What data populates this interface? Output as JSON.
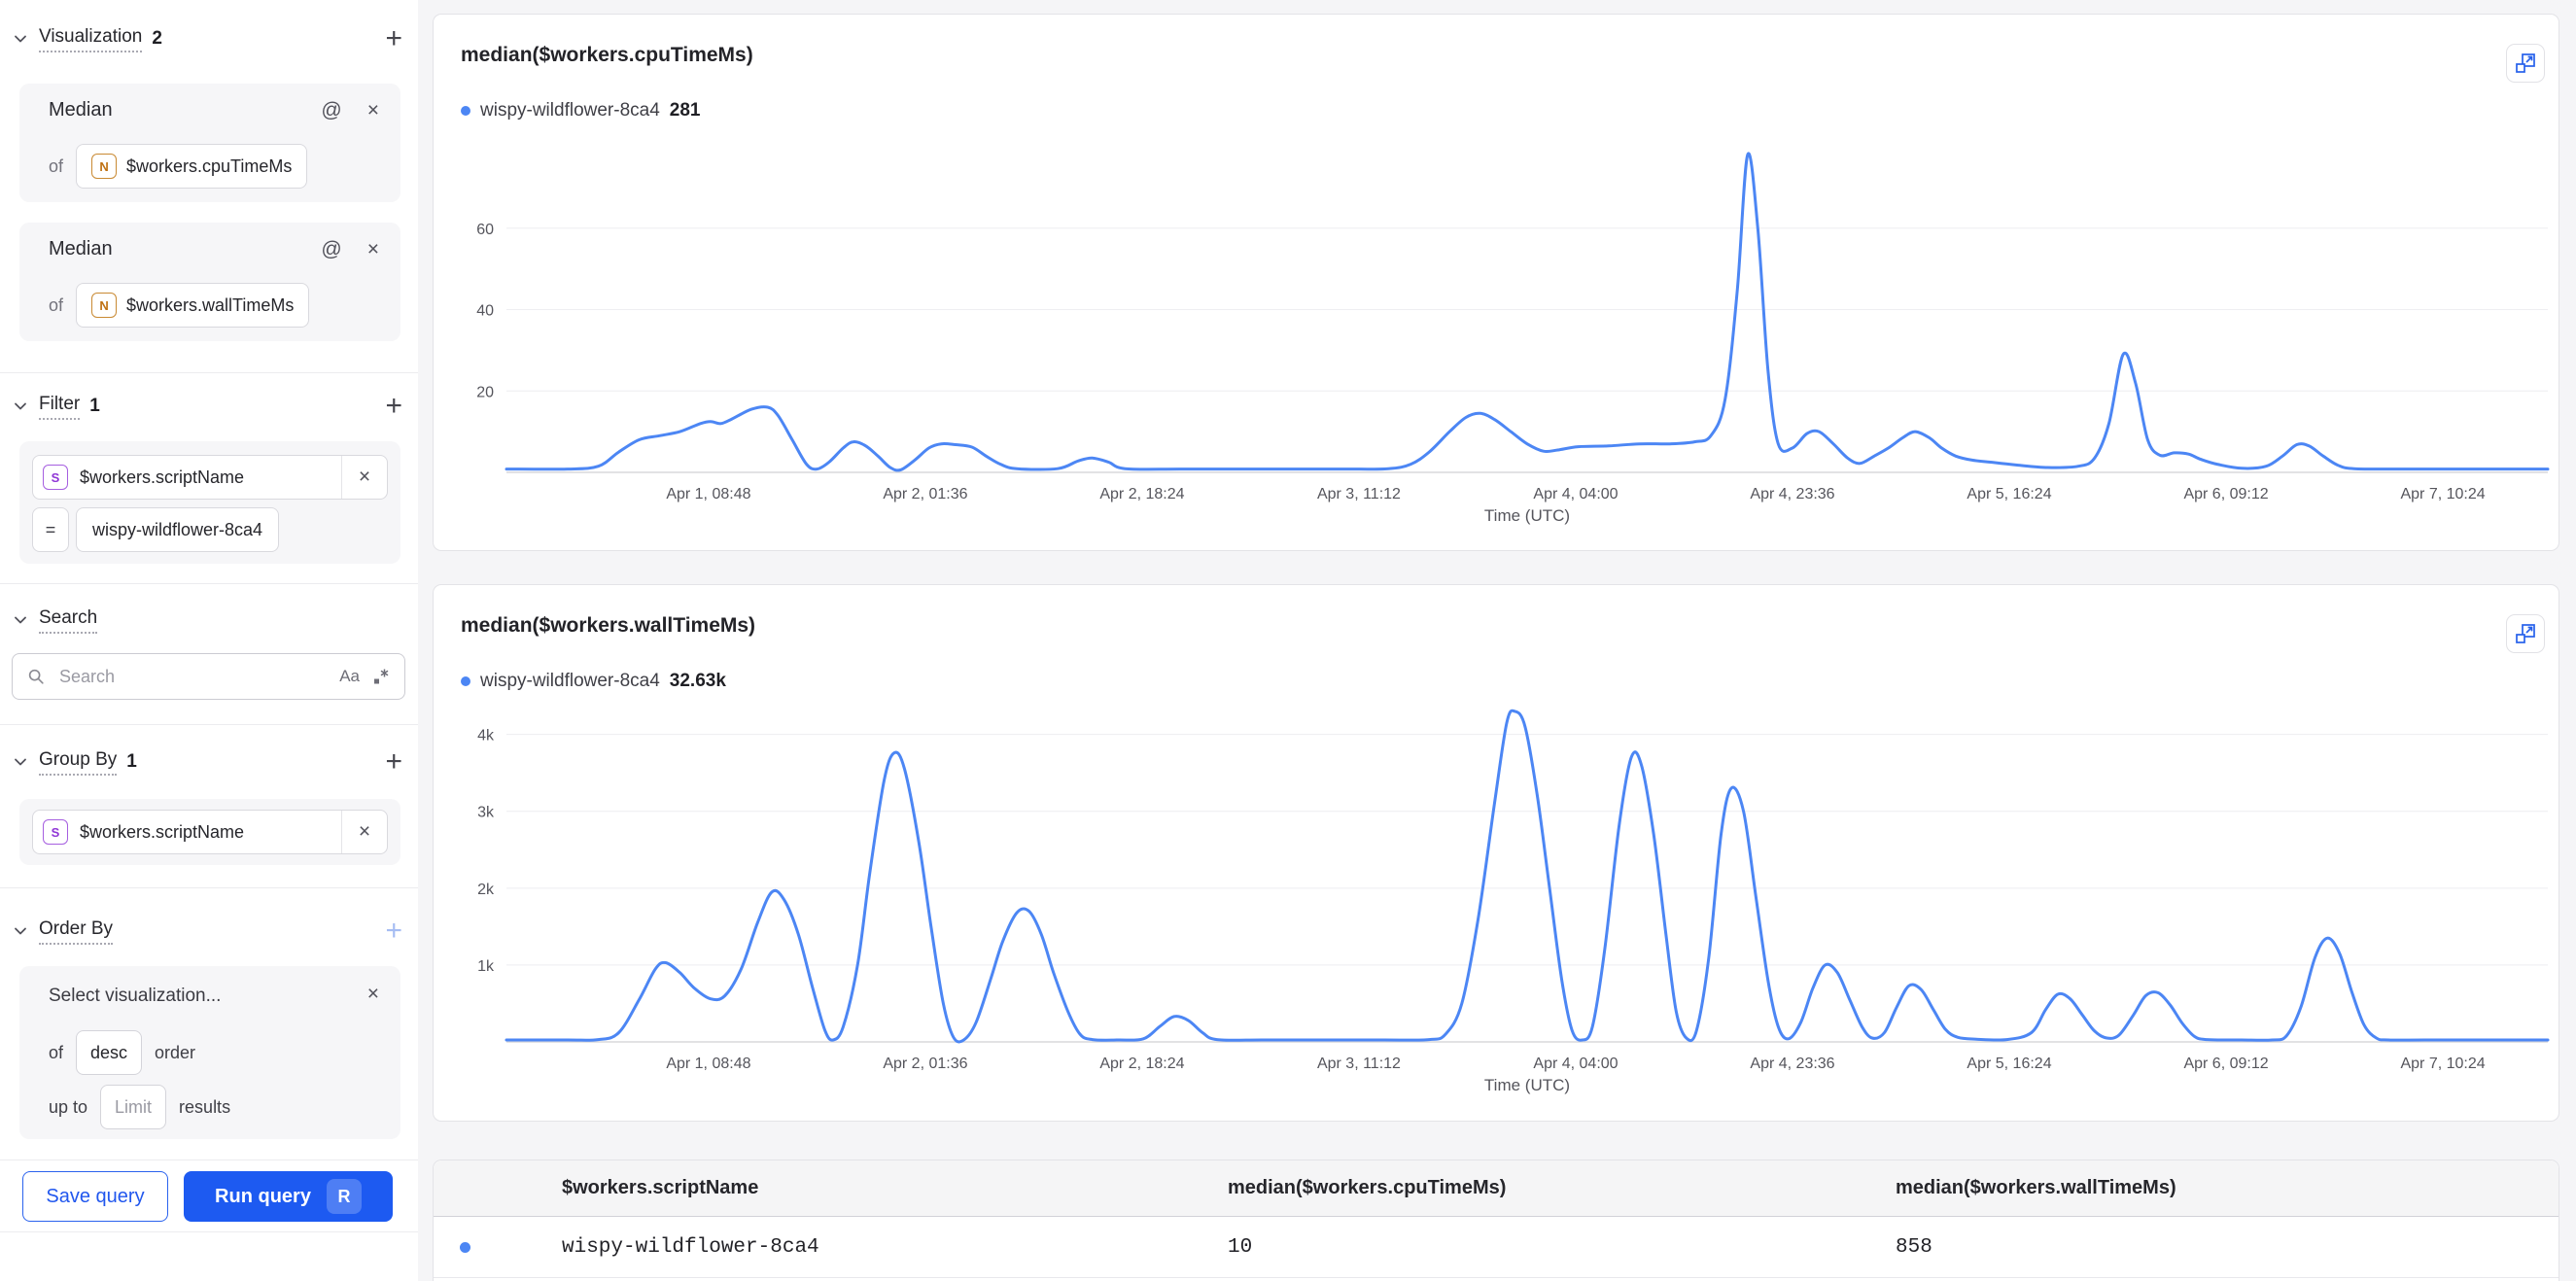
{
  "icons": {
    "at": "@",
    "close": "×",
    "plus": "+"
  },
  "sidebar": {
    "visualization": {
      "title": "Visualization",
      "count": "2",
      "cards": [
        {
          "fn": "Median",
          "of_label": "of",
          "type_letter": "N",
          "field": "$workers.cpuTimeMs"
        },
        {
          "fn": "Median",
          "of_label": "of",
          "type_letter": "N",
          "field": "$workers.wallTimeMs"
        }
      ]
    },
    "filter": {
      "title": "Filter",
      "count": "1",
      "type_letter": "S",
      "field": "$workers.scriptName",
      "operator": "=",
      "value": "wispy-wildflower-8ca4"
    },
    "search": {
      "title": "Search",
      "placeholder": "Search",
      "match_case_label": "Aa"
    },
    "group_by": {
      "title": "Group By",
      "count": "1",
      "type_letter": "S",
      "field": "$workers.scriptName"
    },
    "order_by": {
      "title": "Order By",
      "placeholder": "Select visualization...",
      "of_label": "of",
      "direction": "desc",
      "order_label": "order",
      "up_to_label": "up to",
      "limit_placeholder": "Limit",
      "results_label": "results"
    },
    "actions": {
      "save_label": "Save query",
      "run_label": "Run query",
      "run_shortcut": "R"
    }
  },
  "chart_data": [
    {
      "type": "line",
      "title": "median($workers.cpuTimeMs)",
      "xlabel": "Time (UTC)",
      "ylim": [
        0,
        80
      ],
      "grid": true,
      "legend_position": "top-left",
      "yticks": [
        {
          "value": 20,
          "label": "20"
        },
        {
          "value": 40,
          "label": "40"
        },
        {
          "value": 60,
          "label": "60"
        }
      ],
      "x_tick_labels": [
        "Apr 1, 08:48",
        "Apr 2, 01:36",
        "Apr 2, 18:24",
        "Apr 3, 11:12",
        "Apr 4, 04:00",
        "Apr 4, 23:36",
        "Apr 5, 16:24",
        "Apr 6, 09:12",
        "Apr 7, 10:24"
      ],
      "x_tick_start": 0.099,
      "x_tick_step": 0.1062,
      "plot": {
        "top": 16,
        "bottom": 351
      },
      "series": [
        {
          "name": "wispy-wildflower-8ca4",
          "legend_value": "281",
          "color": "#4C86F4",
          "points": [
            [
              0,
              0.8
            ],
            [
              0.03,
              0.8
            ],
            [
              0.045,
              1.5
            ],
            [
              0.055,
              5
            ],
            [
              0.065,
              8
            ],
            [
              0.075,
              9
            ],
            [
              0.085,
              10
            ],
            [
              0.095,
              12
            ],
            [
              0.1,
              12.5
            ],
            [
              0.105,
              12
            ],
            [
              0.11,
              13
            ],
            [
              0.12,
              15.5
            ],
            [
              0.128,
              16
            ],
            [
              0.133,
              14
            ],
            [
              0.14,
              8
            ],
            [
              0.147,
              2
            ],
            [
              0.152,
              0.8
            ],
            [
              0.158,
              2.5
            ],
            [
              0.165,
              6
            ],
            [
              0.17,
              7.5
            ],
            [
              0.176,
              6.5
            ],
            [
              0.182,
              4
            ],
            [
              0.188,
              1.2
            ],
            [
              0.193,
              0.6
            ],
            [
              0.2,
              3
            ],
            [
              0.207,
              6
            ],
            [
              0.213,
              7
            ],
            [
              0.22,
              6.8
            ],
            [
              0.228,
              6.2
            ],
            [
              0.235,
              4
            ],
            [
              0.242,
              2
            ],
            [
              0.25,
              0.9
            ],
            [
              0.27,
              0.9
            ],
            [
              0.28,
              2.8
            ],
            [
              0.287,
              3.5
            ],
            [
              0.295,
              2.5
            ],
            [
              0.303,
              0.9
            ],
            [
              0.33,
              0.8
            ],
            [
              0.37,
              0.8
            ],
            [
              0.41,
              0.8
            ],
            [
              0.432,
              0.9
            ],
            [
              0.443,
              2
            ],
            [
              0.452,
              5
            ],
            [
              0.462,
              10
            ],
            [
              0.47,
              13.5
            ],
            [
              0.477,
              14.5
            ],
            [
              0.484,
              13
            ],
            [
              0.492,
              10
            ],
            [
              0.5,
              7
            ],
            [
              0.508,
              5.2
            ],
            [
              0.515,
              5.5
            ],
            [
              0.525,
              6.3
            ],
            [
              0.54,
              6.5
            ],
            [
              0.555,
              7
            ],
            [
              0.57,
              7
            ],
            [
              0.582,
              7.5
            ],
            [
              0.59,
              9
            ],
            [
              0.597,
              18
            ],
            [
              0.603,
              45
            ],
            [
              0.608,
              78
            ],
            [
              0.613,
              60
            ],
            [
              0.618,
              25
            ],
            [
              0.623,
              7
            ],
            [
              0.63,
              6
            ],
            [
              0.637,
              9.5
            ],
            [
              0.643,
              10
            ],
            [
              0.65,
              7
            ],
            [
              0.657,
              3.5
            ],
            [
              0.663,
              2.2
            ],
            [
              0.67,
              4
            ],
            [
              0.677,
              6
            ],
            [
              0.684,
              8.5
            ],
            [
              0.69,
              10
            ],
            [
              0.697,
              8.5
            ],
            [
              0.703,
              6
            ],
            [
              0.71,
              4
            ],
            [
              0.718,
              3
            ],
            [
              0.727,
              2.5
            ],
            [
              0.74,
              1.8
            ],
            [
              0.755,
              1.2
            ],
            [
              0.77,
              1.5
            ],
            [
              0.778,
              3.5
            ],
            [
              0.785,
              12
            ],
            [
              0.792,
              29
            ],
            [
              0.798,
              22
            ],
            [
              0.804,
              8
            ],
            [
              0.81,
              4.2
            ],
            [
              0.817,
              4.8
            ],
            [
              0.824,
              4.5
            ],
            [
              0.83,
              3.2
            ],
            [
              0.838,
              2
            ],
            [
              0.85,
              1
            ],
            [
              0.862,
              1.5
            ],
            [
              0.87,
              4
            ],
            [
              0.877,
              6.8
            ],
            [
              0.883,
              6.5
            ],
            [
              0.89,
              4
            ],
            [
              0.897,
              1.8
            ],
            [
              0.905,
              0.9
            ],
            [
              0.93,
              0.8
            ],
            [
              0.96,
              0.8
            ],
            [
              1,
              0.8
            ]
          ]
        }
      ]
    },
    {
      "type": "line",
      "title": "median($workers.wallTimeMs)",
      "xlabel": "Time (UTC)",
      "ylim": [
        0,
        4400
      ],
      "grid": true,
      "legend_position": "top-left",
      "yticks": [
        {
          "value": 1000,
          "label": "1k"
        },
        {
          "value": 2000,
          "label": "2k"
        },
        {
          "value": 3000,
          "label": "3k"
        },
        {
          "value": 4000,
          "label": "4k"
        }
      ],
      "x_tick_labels": [
        "Apr 1, 08:48",
        "Apr 2, 01:36",
        "Apr 2, 18:24",
        "Apr 3, 11:12",
        "Apr 4, 04:00",
        "Apr 4, 23:36",
        "Apr 5, 16:24",
        "Apr 6, 09:12",
        "Apr 7, 10:24"
      ],
      "x_tick_start": 0.099,
      "x_tick_step": 0.1062,
      "plot": {
        "top": 2,
        "bottom": 350
      },
      "series": [
        {
          "name": "wispy-wildflower-8ca4",
          "legend_value": "32.63k",
          "color": "#4C86F4",
          "points": [
            [
              0,
              25
            ],
            [
              0.03,
              25
            ],
            [
              0.045,
              30
            ],
            [
              0.055,
              120
            ],
            [
              0.065,
              550
            ],
            [
              0.073,
              950
            ],
            [
              0.078,
              1030
            ],
            [
              0.085,
              900
            ],
            [
              0.092,
              700
            ],
            [
              0.1,
              560
            ],
            [
              0.107,
              600
            ],
            [
              0.115,
              950
            ],
            [
              0.123,
              1550
            ],
            [
              0.13,
              1950
            ],
            [
              0.136,
              1850
            ],
            [
              0.143,
              1400
            ],
            [
              0.15,
              700
            ],
            [
              0.156,
              150
            ],
            [
              0.16,
              25
            ],
            [
              0.165,
              200
            ],
            [
              0.172,
              1000
            ],
            [
              0.178,
              2200
            ],
            [
              0.185,
              3400
            ],
            [
              0.19,
              3760
            ],
            [
              0.195,
              3550
            ],
            [
              0.202,
              2600
            ],
            [
              0.208,
              1500
            ],
            [
              0.214,
              500
            ],
            [
              0.219,
              60
            ],
            [
              0.224,
              25
            ],
            [
              0.23,
              250
            ],
            [
              0.237,
              800
            ],
            [
              0.243,
              1300
            ],
            [
              0.25,
              1680
            ],
            [
              0.256,
              1700
            ],
            [
              0.262,
              1400
            ],
            [
              0.268,
              900
            ],
            [
              0.275,
              400
            ],
            [
              0.281,
              100
            ],
            [
              0.287,
              30
            ],
            [
              0.3,
              25
            ],
            [
              0.312,
              40
            ],
            [
              0.32,
              200
            ],
            [
              0.327,
              330
            ],
            [
              0.334,
              280
            ],
            [
              0.341,
              120
            ],
            [
              0.348,
              30
            ],
            [
              0.37,
              25
            ],
            [
              0.4,
              25
            ],
            [
              0.43,
              25
            ],
            [
              0.452,
              30
            ],
            [
              0.46,
              100
            ],
            [
              0.468,
              500
            ],
            [
              0.476,
              1600
            ],
            [
              0.484,
              3100
            ],
            [
              0.49,
              4150
            ],
            [
              0.494,
              4300
            ],
            [
              0.499,
              4100
            ],
            [
              0.505,
              3200
            ],
            [
              0.511,
              2000
            ],
            [
              0.517,
              800
            ],
            [
              0.522,
              150
            ],
            [
              0.527,
              25
            ],
            [
              0.532,
              200
            ],
            [
              0.538,
              1200
            ],
            [
              0.545,
              2800
            ],
            [
              0.551,
              3700
            ],
            [
              0.556,
              3600
            ],
            [
              0.562,
              2700
            ],
            [
              0.568,
              1400
            ],
            [
              0.573,
              400
            ],
            [
              0.578,
              50
            ],
            [
              0.583,
              150
            ],
            [
              0.589,
              1100
            ],
            [
              0.595,
              2700
            ],
            [
              0.6,
              3300
            ],
            [
              0.606,
              3000
            ],
            [
              0.612,
              1900
            ],
            [
              0.618,
              800
            ],
            [
              0.623,
              200
            ],
            [
              0.628,
              40
            ],
            [
              0.634,
              250
            ],
            [
              0.64,
              700
            ],
            [
              0.646,
              1000
            ],
            [
              0.652,
              900
            ],
            [
              0.658,
              550
            ],
            [
              0.664,
              200
            ],
            [
              0.669,
              50
            ],
            [
              0.675,
              120
            ],
            [
              0.681,
              450
            ],
            [
              0.687,
              730
            ],
            [
              0.693,
              680
            ],
            [
              0.699,
              420
            ],
            [
              0.705,
              160
            ],
            [
              0.711,
              60
            ],
            [
              0.72,
              35
            ],
            [
              0.735,
              30
            ],
            [
              0.747,
              120
            ],
            [
              0.754,
              420
            ],
            [
              0.76,
              620
            ],
            [
              0.766,
              560
            ],
            [
              0.772,
              350
            ],
            [
              0.778,
              140
            ],
            [
              0.784,
              50
            ],
            [
              0.79,
              90
            ],
            [
              0.797,
              350
            ],
            [
              0.803,
              600
            ],
            [
              0.809,
              640
            ],
            [
              0.815,
              480
            ],
            [
              0.821,
              240
            ],
            [
              0.827,
              70
            ],
            [
              0.833,
              30
            ],
            [
              0.85,
              25
            ],
            [
              0.865,
              25
            ],
            [
              0.872,
              80
            ],
            [
              0.879,
              450
            ],
            [
              0.886,
              1100
            ],
            [
              0.892,
              1350
            ],
            [
              0.898,
              1150
            ],
            [
              0.904,
              650
            ],
            [
              0.91,
              220
            ],
            [
              0.916,
              50
            ],
            [
              0.922,
              25
            ],
            [
              0.94,
              25
            ],
            [
              0.97,
              25
            ],
            [
              1,
              25
            ]
          ]
        }
      ]
    }
  ],
  "table": {
    "headers": [
      "$workers.scriptName",
      "median($workers.cpuTimeMs)",
      "median($workers.wallTimeMs)"
    ],
    "rows": [
      {
        "dot_color": "#4C86F4",
        "cells": [
          "wispy-wildflower-8ca4",
          "10",
          "858"
        ]
      }
    ]
  }
}
